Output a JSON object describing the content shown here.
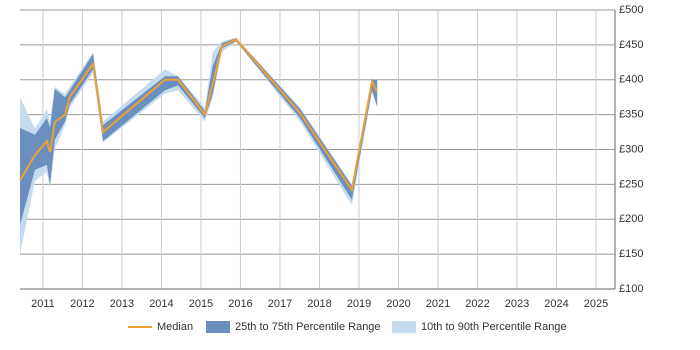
{
  "chart_data": {
    "type": "band-line",
    "x": [
      2010.42,
      2010.8,
      2011.1,
      2011.18,
      2011.3,
      2011.56,
      2011.68,
      2012.27,
      2012.52,
      2014.09,
      2014.42,
      2015.1,
      2015.3,
      2015.53,
      2015.89,
      2017.51,
      2018.82,
      2019.33,
      2019.46
    ],
    "series": [
      {
        "name": "10th to 90th Percentile Range",
        "color": "#c6dbef",
        "low": [
          150,
          255,
          268,
          245,
          300,
          335,
          360,
          410,
          310,
          380,
          385,
          340,
          375,
          440,
          455,
          340,
          220,
          382,
          360
        ],
        "high": [
          375,
          330,
          358,
          340,
          390,
          380,
          390,
          440,
          340,
          415,
          405,
          360,
          440,
          455,
          460,
          360,
          250,
          400,
          400
        ]
      },
      {
        "name": "25th to 75th Percentile Range",
        "color": "#6b8fbe",
        "low": [
          192,
          271,
          278,
          249,
          314,
          340,
          365,
          415,
          312,
          385,
          392,
          345,
          380,
          445,
          455,
          345,
          228,
          385,
          362
        ],
        "high": [
          331,
          321,
          345,
          331,
          387,
          375,
          385,
          437,
          335,
          405,
          405,
          355,
          420,
          452,
          460,
          358,
          248,
          400,
          400
        ]
      },
      {
        "name": "Median",
        "color": "#f0a030",
        "values": [
          256,
          292,
          312,
          296,
          339,
          350,
          375,
          423,
          325,
          400,
          400,
          350,
          394,
          448,
          458,
          352,
          242,
          398,
          382
        ]
      }
    ],
    "legend_order": [
      2,
      1,
      0
    ],
    "xlim": [
      2010.42,
      2025.48
    ],
    "xticks": [
      2011,
      2012,
      2013,
      2014,
      2015,
      2016,
      2017,
      2018,
      2019,
      2020,
      2021,
      2022,
      2023,
      2024,
      2025
    ],
    "ylim": [
      100,
      500
    ],
    "yticks": [
      {
        "value": 100,
        "label": "£100"
      },
      {
        "value": 150,
        "label": "£150"
      },
      {
        "value": 200,
        "label": "£200"
      },
      {
        "value": 250,
        "label": "£250"
      },
      {
        "value": 300,
        "label": "£300"
      },
      {
        "value": 350,
        "label": "£350"
      },
      {
        "value": 400,
        "label": "£400"
      },
      {
        "value": 450,
        "label": "£450"
      },
      {
        "value": 500,
        "label": "£500"
      }
    ],
    "grid": true
  }
}
